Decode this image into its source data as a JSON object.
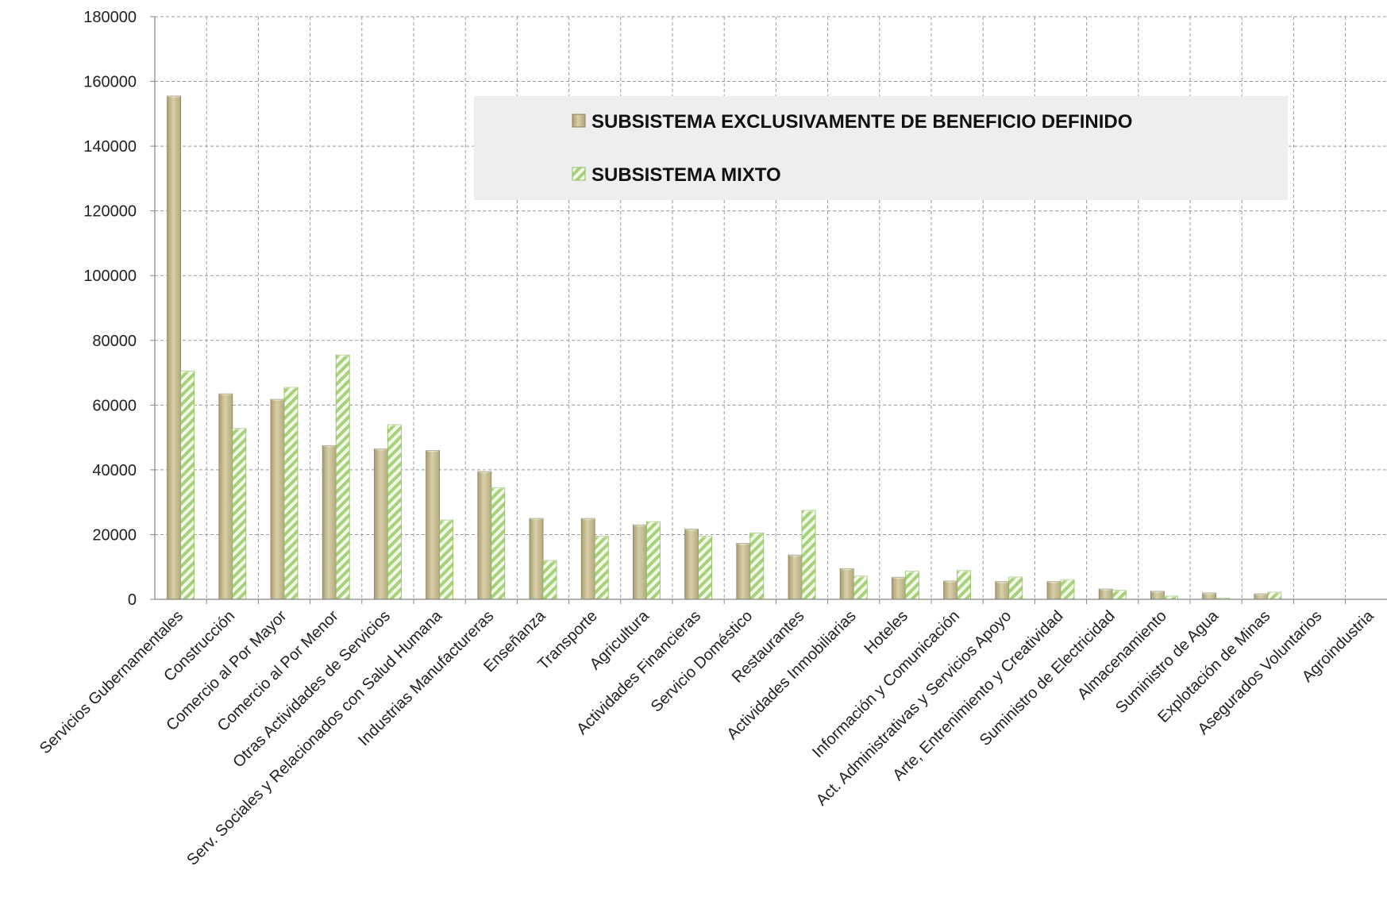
{
  "chart_data": {
    "type": "bar",
    "categories": [
      "Servicios Gubernamentales",
      "Construcción",
      "Comercio al Por Mayor",
      "Comercio al Por Menor",
      "Otras Actividades de Servicios",
      "Serv. Sociales y Relacionados con Salud Humana",
      "Industrias Manufactureras",
      "Enseñanza",
      "Transporte",
      "Agricultura",
      "Actividades Financieras",
      "Servicio Doméstico",
      "Restaurantes",
      "Actividades Inmobiliarias",
      "Hoteles",
      "Información y Comunicación",
      "Act. Administrativas y Servicios Apoyo",
      "Arte, Entrenimiento y Creatividad",
      "Suministro de Electricidad",
      "Almacenamiento",
      "Suministro de Agua",
      "Explotación de Minas",
      "Asegurados Voluntarios",
      "Agroindustria"
    ],
    "series": [
      {
        "name": "SUBSISTEMA EXCLUSIVAMENTE DE BENEFICIO DEFINIDO",
        "color": "#c8bd94",
        "values": [
          155500,
          63500,
          61800,
          47500,
          46500,
          46000,
          39500,
          25000,
          25000,
          23000,
          21700,
          17300,
          13700,
          9500,
          6800,
          5700,
          5500,
          5500,
          3200,
          2500,
          2000,
          1700,
          0,
          0
        ]
      },
      {
        "name": "SUBSISTEMA MIXTO",
        "color": "#a6d27a",
        "values": [
          70500,
          52800,
          65500,
          75500,
          54000,
          24500,
          34500,
          12000,
          19500,
          24000,
          19500,
          20500,
          27500,
          7200,
          8700,
          8900,
          6900,
          6100,
          2800,
          1000,
          400,
          2200,
          0,
          0
        ]
      }
    ],
    "yticks": [
      "180000",
      "160000",
      "140000",
      "120000",
      "100000",
      "80000",
      "60000",
      "40000",
      "20000",
      "0"
    ],
    "ylim": [
      0,
      180000
    ],
    "grid": true,
    "legend_position": "top-center"
  }
}
